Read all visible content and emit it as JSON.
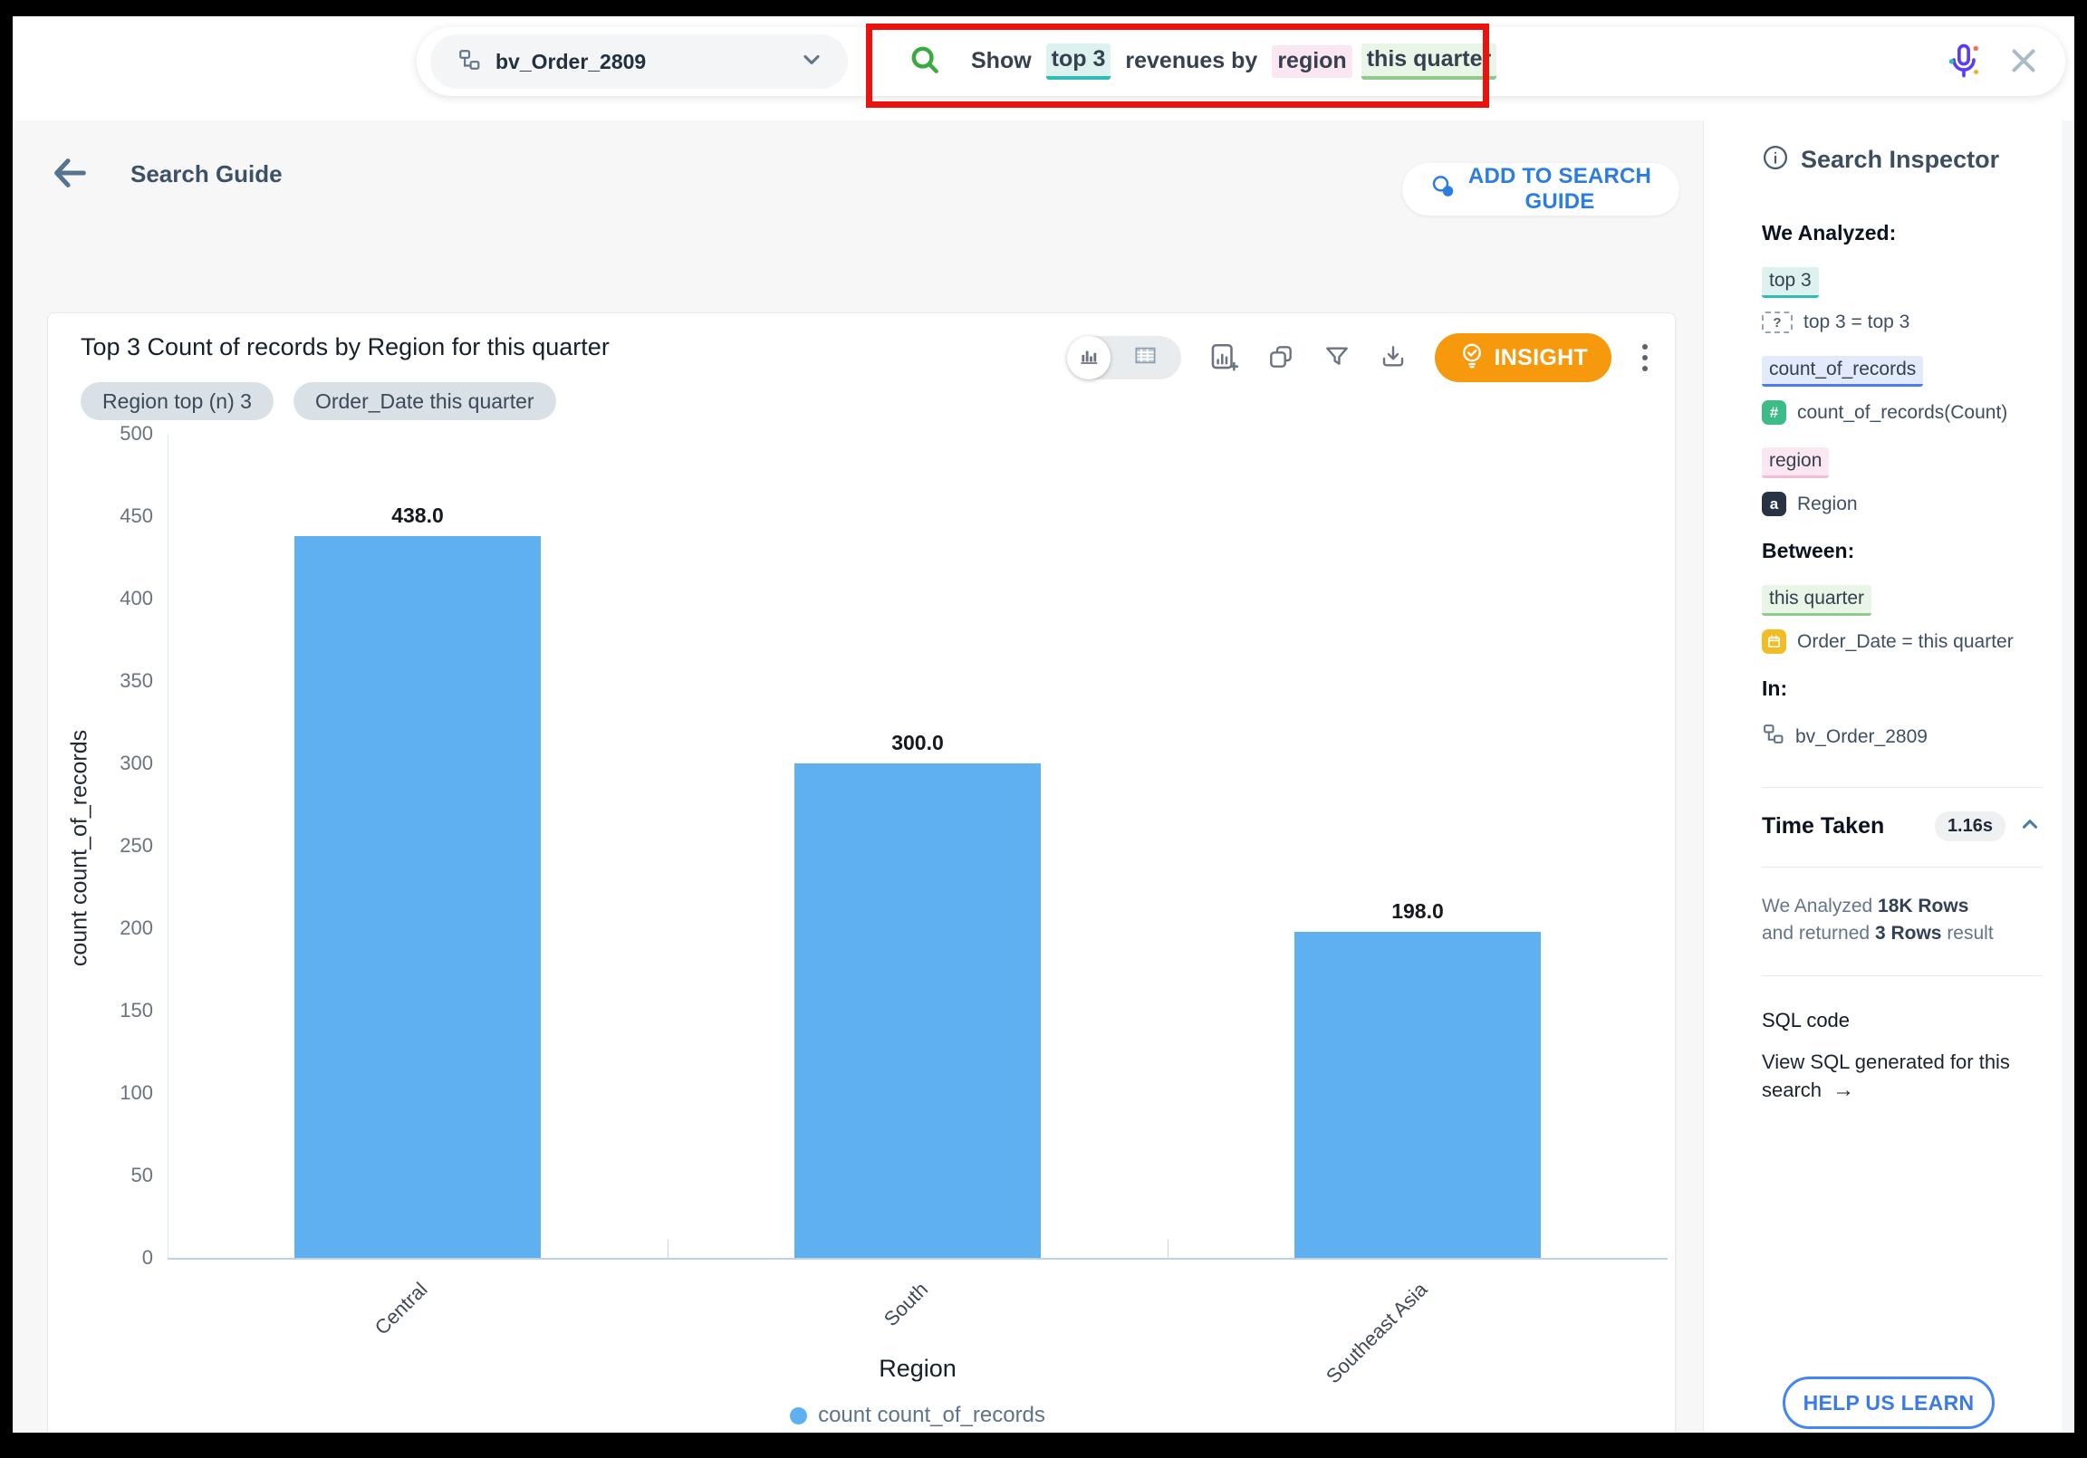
{
  "topbar": {
    "dataset_selector": {
      "label": "bv_Order_2809"
    },
    "query_tokens": [
      {
        "text": "Show",
        "style": "plain"
      },
      {
        "text": "top 3",
        "style": "teal"
      },
      {
        "text": "revenues by",
        "style": "plain"
      },
      {
        "text": "region",
        "style": "pink"
      },
      {
        "text": "this quarter",
        "style": "green"
      }
    ]
  },
  "header": {
    "back_label": "Search Guide",
    "add_to_guide_label": "ADD TO SEARCH GUIDE"
  },
  "card": {
    "title": "Top 3 Count of records by Region for this quarter",
    "chips": [
      "Region top (n) 3",
      "Order_Date this quarter"
    ],
    "insight_label": "INSIGHT"
  },
  "chart_data": {
    "type": "bar",
    "title": "Top 3 Count of records by Region for this quarter",
    "categories": [
      "Central",
      "South",
      "Southeast Asia"
    ],
    "values": [
      438.0,
      300.0,
      198.0
    ],
    "value_labels": [
      "438.0",
      "300.0",
      "198.0"
    ],
    "xlabel": "Region",
    "ylabel": "count count_of_records",
    "ylim": [
      0,
      500
    ],
    "yticks": [
      500,
      450,
      400,
      350,
      300,
      250,
      200,
      150,
      100,
      50,
      0
    ],
    "legend": [
      "count count_of_records"
    ],
    "legend_position": "bottom",
    "grid": false,
    "bar_color": "#5fb0f1"
  },
  "inspector": {
    "title": "Search Inspector",
    "we_analyzed_heading": "We Analyzed:",
    "analyzed": [
      {
        "chip": "top 3",
        "badge": "?",
        "detail": "top 3 = top 3"
      },
      {
        "chip": "count_of_records",
        "badge": "#",
        "detail": "count_of_records(Count)"
      },
      {
        "chip": "region",
        "badge": "a",
        "detail": "Region"
      }
    ],
    "between_heading": "Between:",
    "between": {
      "chip": "this quarter",
      "detail": "Order_Date = this quarter"
    },
    "in_heading": "In:",
    "in_value": "bv_Order_2809",
    "time_taken_label": "Time Taken",
    "time_taken_value": "1.16s",
    "rows": {
      "l1a": "We Analyzed",
      "l1b": "18K Rows",
      "l2a": "and returned",
      "l2b": "3 Rows",
      "l2c": "result"
    },
    "sql_label": "SQL code",
    "sql_link": "View SQL generated for this search",
    "sql_arrow": "→",
    "help_button_label": "HELP US LEARN"
  },
  "colors": {
    "bar_blue": "#5fb0f1",
    "insight_orange": "#f6990c",
    "annotation_red": "#ea130e",
    "highlight_teal": "#2fbcb4",
    "highlight_pink": "#fbe7f1",
    "highlight_green": "#8fc98c",
    "link_blue": "#2b7de0"
  }
}
